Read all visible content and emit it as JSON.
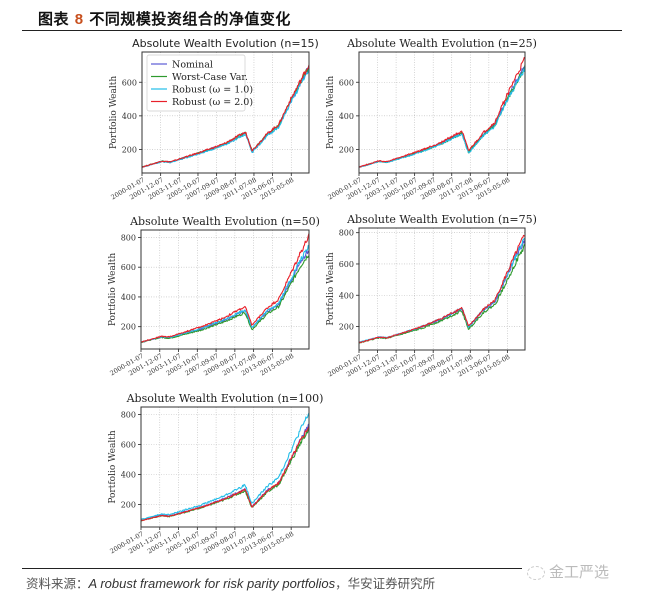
{
  "figure": {
    "label": "图表",
    "number": "8",
    "title": "不同规模投资组合的净值变化"
  },
  "source": {
    "prefix": "资料来源：",
    "reference": "A robust framework for risk parity portfolios",
    "suffix": "，华安证券研究所"
  },
  "watermark": {
    "text": "金工严选"
  },
  "colors": {
    "Nominal": "#5b5bd6",
    "Worst-Case Var.": "#2e9a2e",
    "Robust (ω = 1.0)": "#22bde8",
    "Robust (ω = 2.0)": "#e8202a"
  },
  "chart_data": [
    {
      "type": "line",
      "title": "Absolute Wealth Evolution (n=15)",
      "xlabel": "",
      "ylabel": "Portfolio Wealth",
      "x_ticks": [
        "2000-01-07",
        "2001-12-07",
        "2003-11-07",
        "2005-10-07",
        "2007-09-07",
        "2009-08-07",
        "2011-07-08",
        "2013-06-07",
        "2015-05-08"
      ],
      "y_ticks": [
        200,
        400,
        600
      ],
      "ylim": [
        60,
        780
      ],
      "grid": true,
      "legend": [
        "Nominal",
        "Worst-Case Var.",
        "Robust (ω = 1.0)",
        "Robust (ω = 2.0)"
      ],
      "legend_position": "upper left",
      "series": [
        {
          "name": "Nominal",
          "values": [
            95,
            130,
            125,
            185,
            230,
            300,
            190,
            290,
            345,
            470,
            600,
            690
          ]
        },
        {
          "name": "Worst-Case Var.",
          "values": [
            95,
            130,
            125,
            185,
            230,
            300,
            190,
            290,
            345,
            470,
            600,
            690
          ]
        },
        {
          "name": "Robust (ω = 1.0)",
          "values": [
            93,
            128,
            122,
            180,
            225,
            292,
            182,
            282,
            335,
            460,
            588,
            675
          ]
        },
        {
          "name": "Robust (ω = 2.0)",
          "values": [
            95,
            131,
            126,
            187,
            233,
            303,
            193,
            294,
            350,
            478,
            610,
            705
          ]
        }
      ]
    },
    {
      "type": "line",
      "title": "Absolute Wealth Evolution (n=25)",
      "xlabel": "",
      "ylabel": "Portfolio Wealth",
      "x_ticks": [
        "2000-01-07",
        "2001-12-07",
        "2003-11-07",
        "2005-10-07",
        "2007-09-07",
        "2009-08-07",
        "2011-07-08",
        "2013-06-07",
        "2015-05-08"
      ],
      "y_ticks": [
        200,
        400,
        600
      ],
      "ylim": [
        60,
        780
      ],
      "grid": true,
      "series": [
        {
          "name": "Nominal",
          "values": [
            95,
            130,
            125,
            185,
            235,
            300,
            185,
            290,
            350,
            480,
            610,
            700
          ]
        },
        {
          "name": "Worst-Case Var.",
          "values": [
            95,
            129,
            124,
            183,
            232,
            296,
            182,
            286,
            344,
            472,
            600,
            690
          ]
        },
        {
          "name": "Robust (ω = 1.0)",
          "values": [
            94,
            128,
            123,
            181,
            230,
            294,
            178,
            283,
            340,
            468,
            595,
            685
          ]
        },
        {
          "name": "Robust (ω = 2.0)",
          "values": [
            96,
            132,
            127,
            190,
            240,
            310,
            192,
            300,
            362,
            500,
            640,
            740
          ]
        }
      ]
    },
    {
      "type": "line",
      "title": "Absolute Wealth Evolution (n=50)",
      "xlabel": "",
      "ylabel": "Portfolio Wealth",
      "x_ticks": [
        "2000-01-07",
        "2001-12-07",
        "2003-11-07",
        "2005-10-07",
        "2007-09-07",
        "2009-08-07",
        "2011-07-08",
        "2013-06-07",
        "2015-05-08"
      ],
      "y_ticks": [
        200,
        400,
        600,
        800
      ],
      "ylim": [
        50,
        850
      ],
      "grid": true,
      "series": [
        {
          "name": "Nominal",
          "values": [
            95,
            130,
            125,
            185,
            240,
            310,
            190,
            300,
            350,
            480,
            640,
            720
          ]
        },
        {
          "name": "Worst-Case Var.",
          "values": [
            95,
            128,
            122,
            178,
            230,
            295,
            180,
            285,
            335,
            460,
            610,
            690
          ]
        },
        {
          "name": "Robust (ω = 1.0)",
          "values": [
            96,
            131,
            127,
            190,
            245,
            315,
            195,
            305,
            360,
            495,
            650,
            740
          ]
        },
        {
          "name": "Robust (ω = 2.0)",
          "values": [
            97,
            135,
            132,
            200,
            258,
            335,
            210,
            325,
            385,
            530,
            700,
            810
          ]
        }
      ]
    },
    {
      "type": "line",
      "title": "Absolute Wealth Evolution (n=75)",
      "xlabel": "",
      "ylabel": "Portfolio Wealth",
      "x_ticks": [
        "2000-01-07",
        "2001-12-07",
        "2003-11-07",
        "2005-10-07",
        "2007-09-07",
        "2009-08-07",
        "2011-07-08",
        "2013-06-07",
        "2015-05-08"
      ],
      "y_ticks": [
        200,
        400,
        600,
        800
      ],
      "ylim": [
        50,
        830
      ],
      "grid": true,
      "series": [
        {
          "name": "Nominal",
          "values": [
            98,
            132,
            128,
            190,
            245,
            315,
            195,
            305,
            360,
            500,
            660,
            760
          ]
        },
        {
          "name": "Worst-Case Var.",
          "values": [
            95,
            128,
            124,
            182,
            235,
            300,
            182,
            290,
            340,
            470,
            620,
            720
          ]
        },
        {
          "name": "Robust (ω = 1.0)",
          "values": [
            100,
            134,
            129,
            192,
            247,
            318,
            198,
            308,
            365,
            505,
            665,
            765
          ]
        },
        {
          "name": "Robust (ω = 2.0)",
          "values": [
            96,
            132,
            128,
            192,
            248,
            320,
            200,
            310,
            370,
            515,
            680,
            790
          ]
        }
      ]
    },
    {
      "type": "line",
      "title": "Absolute Wealth Evolution (n=100)",
      "xlabel": "",
      "ylabel": "Portfolio Wealth",
      "x_ticks": [
        "2000-01-07",
        "2001-12-07",
        "2003-11-07",
        "2005-10-07",
        "2007-09-07",
        "2009-08-07",
        "2011-07-08",
        "2013-06-07",
        "2015-05-08"
      ],
      "y_ticks": [
        200,
        400,
        600,
        800
      ],
      "ylim": [
        50,
        850
      ],
      "grid": true,
      "series": [
        {
          "name": "Nominal",
          "values": [
            94,
            128,
            124,
            183,
            235,
            302,
            185,
            292,
            345,
            478,
            630,
            730
          ]
        },
        {
          "name": "Worst-Case Var.",
          "values": [
            92,
            125,
            120,
            178,
            228,
            292,
            178,
            282,
            333,
            462,
            610,
            705
          ]
        },
        {
          "name": "Robust (ω = 1.0)",
          "values": [
            100,
            136,
            132,
            198,
            255,
            330,
            205,
            320,
            380,
            530,
            700,
            810
          ]
        },
        {
          "name": "Robust (ω = 2.0)",
          "values": [
            92,
            126,
            122,
            182,
            233,
            300,
            183,
            290,
            342,
            475,
            625,
            725
          ]
        }
      ]
    }
  ]
}
